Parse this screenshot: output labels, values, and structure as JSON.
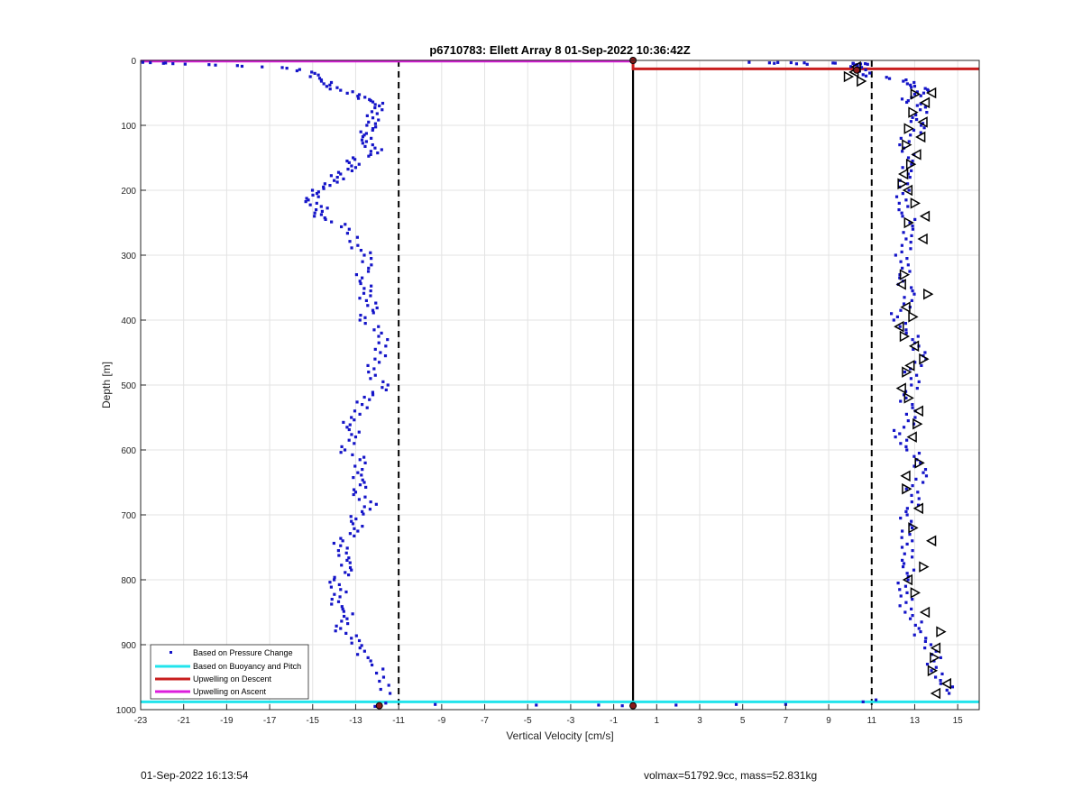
{
  "chart_data": {
    "type": "scatter",
    "title": "p6710783: Ellett Array 8 01-Sep-2022 10:36:42Z",
    "xlabel": "Vertical Velocity [cm/s]",
    "ylabel": "Depth [m]",
    "xlim": [
      -23,
      16
    ],
    "ylim": [
      0,
      1000
    ],
    "y_reversed": true,
    "grid": true,
    "xticks": [
      -23,
      -21,
      -19,
      -17,
      -15,
      -13,
      -11,
      -9,
      -7,
      -5,
      -3,
      -1,
      1,
      3,
      5,
      7,
      9,
      11,
      13,
      15
    ],
    "yticks": [
      0,
      100,
      200,
      300,
      400,
      500,
      600,
      700,
      800,
      900,
      1000
    ],
    "legend_position": "bottom-left",
    "colors": {
      "pressure_points": "#1515c8",
      "buoyancy_pitch": "#22e4ec",
      "upwelling_descent": "#c81e1e",
      "upwelling_ascent": "#dc1edc",
      "reference_lines": "#000000"
    },
    "series": [
      {
        "name": "Based on Pressure Change",
        "style": "dots",
        "profiles": [
          {
            "branch": "descent",
            "x": [
              -22.9,
              -21.5,
              -18.5,
              -16.2,
              -14.9,
              -14.6,
              -14.2,
              -13.7,
              -12.9,
              -12.3,
              -11.9,
              -12.0,
              -12.4,
              -12.2,
              -12.6,
              -12.5,
              -12.1,
              -12.3,
              -13.4,
              -13.0,
              -13.7,
              -14.0,
              -14.5,
              -14.8,
              -15.2,
              -14.6,
              -14.9,
              -14.4,
              -13.3,
              -12.9,
              -12.6,
              -12.4,
              -12.8,
              -12.3,
              -12.5,
              -12.2,
              -12.8,
              -11.8,
              -11.6,
              -12.1,
              -12.4,
              -11.5,
              -12.2,
              -12.7,
              -13.2,
              -13.4,
              -13.0,
              -13.5,
              -12.8,
              -12.9,
              -12.6,
              -13.0,
              -12.3,
              -12.7,
              -13.2,
              -12.9,
              -13.6,
              -13.8,
              -13.4,
              -13.2,
              -14.0,
              -13.7,
              -14.1,
              -13.6,
              -13.4,
              -13.7,
              -13.2,
              -12.8,
              -12.3,
              -11.7,
              -11.4
            ],
            "y": [
              3,
              5,
              8,
              12,
              20,
              30,
              38,
              46,
              55,
              62,
              70,
              82,
              95,
              105,
              115,
              125,
              135,
              145,
              155,
              165,
              175,
              185,
              195,
              205,
              215,
              225,
              235,
              245,
              260,
              285,
              300,
              320,
              340,
              355,
              370,
              385,
              400,
              420,
              440,
              460,
              480,
              500,
              515,
              530,
              550,
              565,
              580,
              600,
              615,
              635,
              650,
              665,
              680,
              695,
              710,
              725,
              740,
              755,
              770,
              785,
              800,
              815,
              830,
              845,
              860,
              875,
              890,
              905,
              925,
              950,
              975
            ]
          },
          {
            "branch": "ascent",
            "x": [
              14.6,
              14.2,
              14.0,
              13.8,
              13.5,
              13.2,
              12.9,
              12.6,
              12.3,
              12.7,
              12.5,
              12.9,
              12.4,
              12.8,
              12.6,
              13.2,
              12.9,
              13.4,
              13.1,
              12.6,
              12.3,
              12.7,
              12.9,
              12.5,
              13.2,
              12.8,
              13.4,
              13.0,
              12.6,
              12.2,
              12.5,
              12.9,
              12.3,
              12.7,
              12.4,
              12.6,
              12.9,
              12.4,
              12.6,
              12.3,
              12.7,
              12.9,
              12.5,
              12.8,
              13.3,
              12.9,
              13.5,
              12.7,
              13.0,
              13.6,
              12.8,
              12.6,
              10.6,
              10.4,
              10.2,
              10.7,
              9.2,
              5.3,
              8.0
            ],
            "y": [
              975,
              955,
              935,
              915,
              895,
              875,
              855,
              835,
              815,
              795,
              775,
              755,
              735,
              715,
              695,
              675,
              655,
              635,
              615,
              595,
              575,
              555,
              535,
              515,
              495,
              475,
              455,
              435,
              415,
              395,
              375,
              355,
              335,
              315,
              295,
              275,
              255,
              235,
              215,
              195,
              175,
              155,
              135,
              115,
              100,
              88,
              72,
              62,
              52,
              45,
              38,
              30,
              22,
              12,
              7,
              5,
              4,
              3,
              6
            ]
          }
        ]
      },
      {
        "name": "Based on Buoyancy and Pitch",
        "style": "line",
        "x": [
          -23,
          16
        ],
        "y": [
          988,
          988
        ]
      },
      {
        "name": "Upwelling on Descent",
        "style": "line",
        "x": [
          -0.1,
          -0.1,
          16
        ],
        "y": [
          0,
          13,
          13
        ]
      },
      {
        "name": "Upwelling on Ascent",
        "style": "line",
        "x": [
          -23,
          -0.1
        ],
        "y": [
          1,
          1
        ]
      }
    ],
    "reference_lines": [
      {
        "x": -11,
        "style": "dashed"
      },
      {
        "x": 11,
        "style": "dashed"
      },
      {
        "x": -0.1,
        "style": "solid"
      }
    ],
    "markers": {
      "style": "open-triangles",
      "x": [
        14.0,
        13.8,
        12.6,
        13.2,
        12.9,
        13.1,
        13.2,
        12.7,
        12.4,
        12.6,
        12.8,
        13.4,
        13.0,
        12.5,
        12.3,
        12.9,
        12.6,
        13.6,
        12.4,
        12.5,
        13.4,
        12.7,
        13.5,
        13.0,
        12.7,
        12.4,
        12.5,
        12.8,
        13.1,
        12.6,
        13.3,
        12.7,
        13.4,
        12.9,
        13.5,
        13.0,
        13.8,
        12.6,
        13.2,
        12.9,
        13.8,
        13.4,
        12.7,
        13.0,
        13.5,
        14.2,
        14.0,
        13.9,
        14.5,
        10.5,
        10.2,
        9.9,
        10.3
      ],
      "y": [
        975,
        940,
        640,
        620,
        580,
        560,
        540,
        520,
        505,
        480,
        470,
        460,
        440,
        425,
        410,
        395,
        380,
        360,
        345,
        330,
        275,
        250,
        240,
        220,
        200,
        190,
        175,
        160,
        145,
        130,
        118,
        105,
        95,
        80,
        65,
        52,
        50,
        660,
        690,
        720,
        740,
        780,
        800,
        820,
        850,
        880,
        905,
        920,
        960,
        32,
        18,
        25,
        10
      ]
    },
    "extra_points": [
      {
        "x": -11.9,
        "y": 993
      },
      {
        "x": -11.6,
        "y": 990
      },
      {
        "x": -12.1,
        "y": 995
      },
      {
        "x": -9.3,
        "y": 992
      },
      {
        "x": -4.6,
        "y": 993
      },
      {
        "x": -1.7,
        "y": 993
      },
      {
        "x": -0.6,
        "y": 994
      },
      {
        "x": -0.1,
        "y": 994
      },
      {
        "x": 1.9,
        "y": 993
      },
      {
        "x": 4.7,
        "y": 992
      },
      {
        "x": 7.0,
        "y": 992
      },
      {
        "x": 10.6,
        "y": 988
      },
      {
        "x": 11.2,
        "y": 985
      }
    ],
    "footer": {
      "left": "01-Sep-2022 16:13:54",
      "right": "volmax=51792.9cc, mass=52.831kg"
    }
  }
}
